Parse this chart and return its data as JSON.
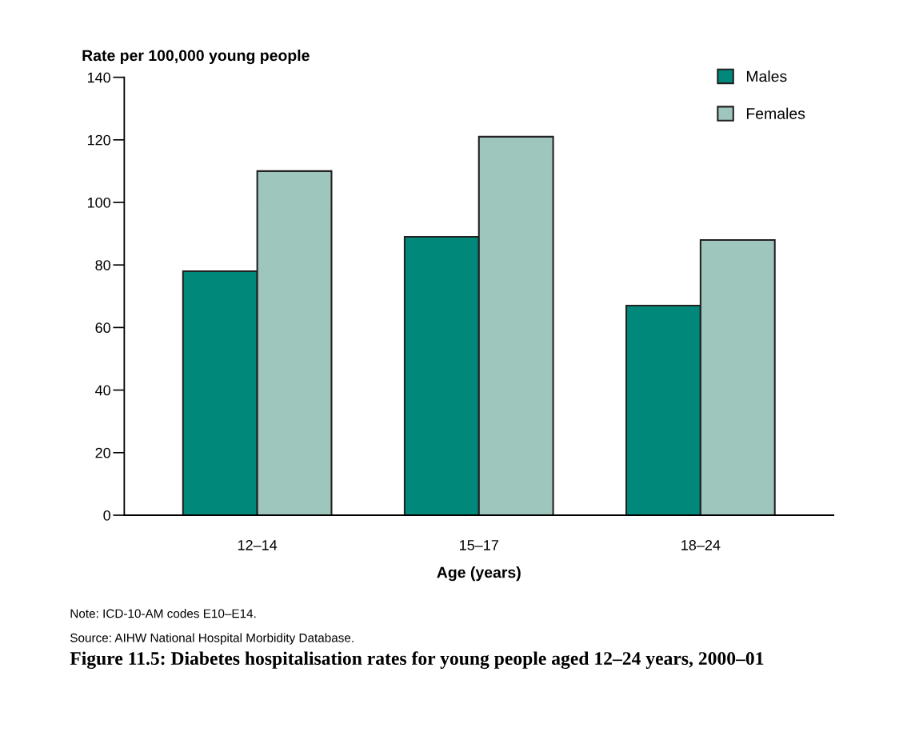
{
  "chart_data": {
    "type": "bar",
    "title": "Figure 11.5: Diabetes hospitalisation rates for young people aged 12–24 years, 2000–01",
    "xlabel": "Age (years)",
    "ylabel": "Rate per 100,000 young people",
    "categories": [
      "12–14",
      "15–17",
      "18–24"
    ],
    "series": [
      {
        "name": "Males",
        "color": "#00897a",
        "values": [
          78,
          89,
          67
        ]
      },
      {
        "name": "Females",
        "color": "#9fc6bd",
        "values": [
          110,
          121,
          88
        ]
      }
    ],
    "ylim": [
      0,
      140
    ],
    "yticks": [
      0,
      20,
      40,
      60,
      80,
      100,
      120,
      140
    ],
    "grid": false,
    "legend": "top right",
    "annotations": [
      "Note: ICD-10-AM codes E10–E14.",
      "Source: AIHW National Hospital Morbidity Database."
    ]
  }
}
